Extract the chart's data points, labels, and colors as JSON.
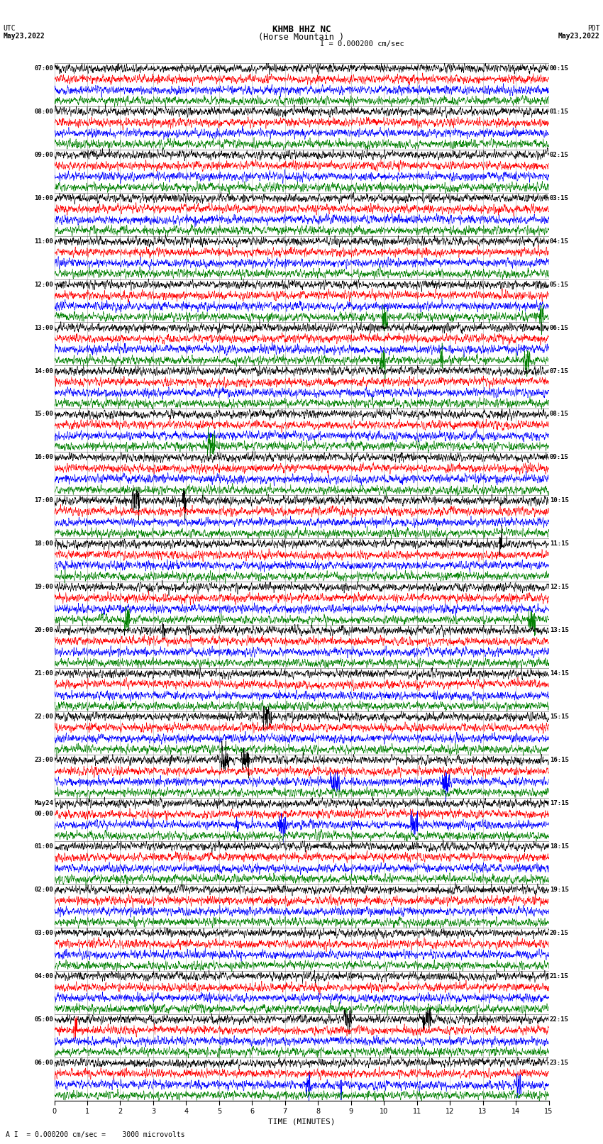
{
  "title_line1": "KHMB HHZ NC",
  "title_line2": "(Horse Mountain )",
  "scale_label": "I = 0.000200 cm/sec",
  "bottom_text": "A I  = 0.000200 cm/sec =    3000 microvolts",
  "left_label": "UTC",
  "left_date": "May23,2022",
  "right_label": "PDT",
  "right_date": "May23,2022",
  "xlabel": "TIME (MINUTES)",
  "xmin": 0,
  "xmax": 15,
  "xticks": [
    0,
    1,
    2,
    3,
    4,
    5,
    6,
    7,
    8,
    9,
    10,
    11,
    12,
    13,
    14,
    15
  ],
  "colors": [
    "black",
    "red",
    "blue",
    "green"
  ],
  "bg_color": "white",
  "grid_color": "#888888",
  "fig_width": 8.5,
  "fig_height": 16.13,
  "num_groups": 24,
  "traces_per_group": 4,
  "left_times": [
    "07:00",
    "08:00",
    "09:00",
    "10:00",
    "11:00",
    "12:00",
    "13:00",
    "14:00",
    "15:00",
    "16:00",
    "17:00",
    "18:00",
    "19:00",
    "20:00",
    "21:00",
    "22:00",
    "23:00",
    "May24\n00:00",
    "01:00",
    "02:00",
    "03:00",
    "04:00",
    "05:00",
    "06:00"
  ],
  "right_times": [
    "00:15",
    "01:15",
    "02:15",
    "03:15",
    "04:15",
    "05:15",
    "06:15",
    "07:15",
    "08:15",
    "09:15",
    "10:15",
    "11:15",
    "12:15",
    "13:15",
    "14:15",
    "15:15",
    "16:15",
    "17:15",
    "18:15",
    "19:15",
    "20:15",
    "21:15",
    "22:15",
    "23:15"
  ]
}
